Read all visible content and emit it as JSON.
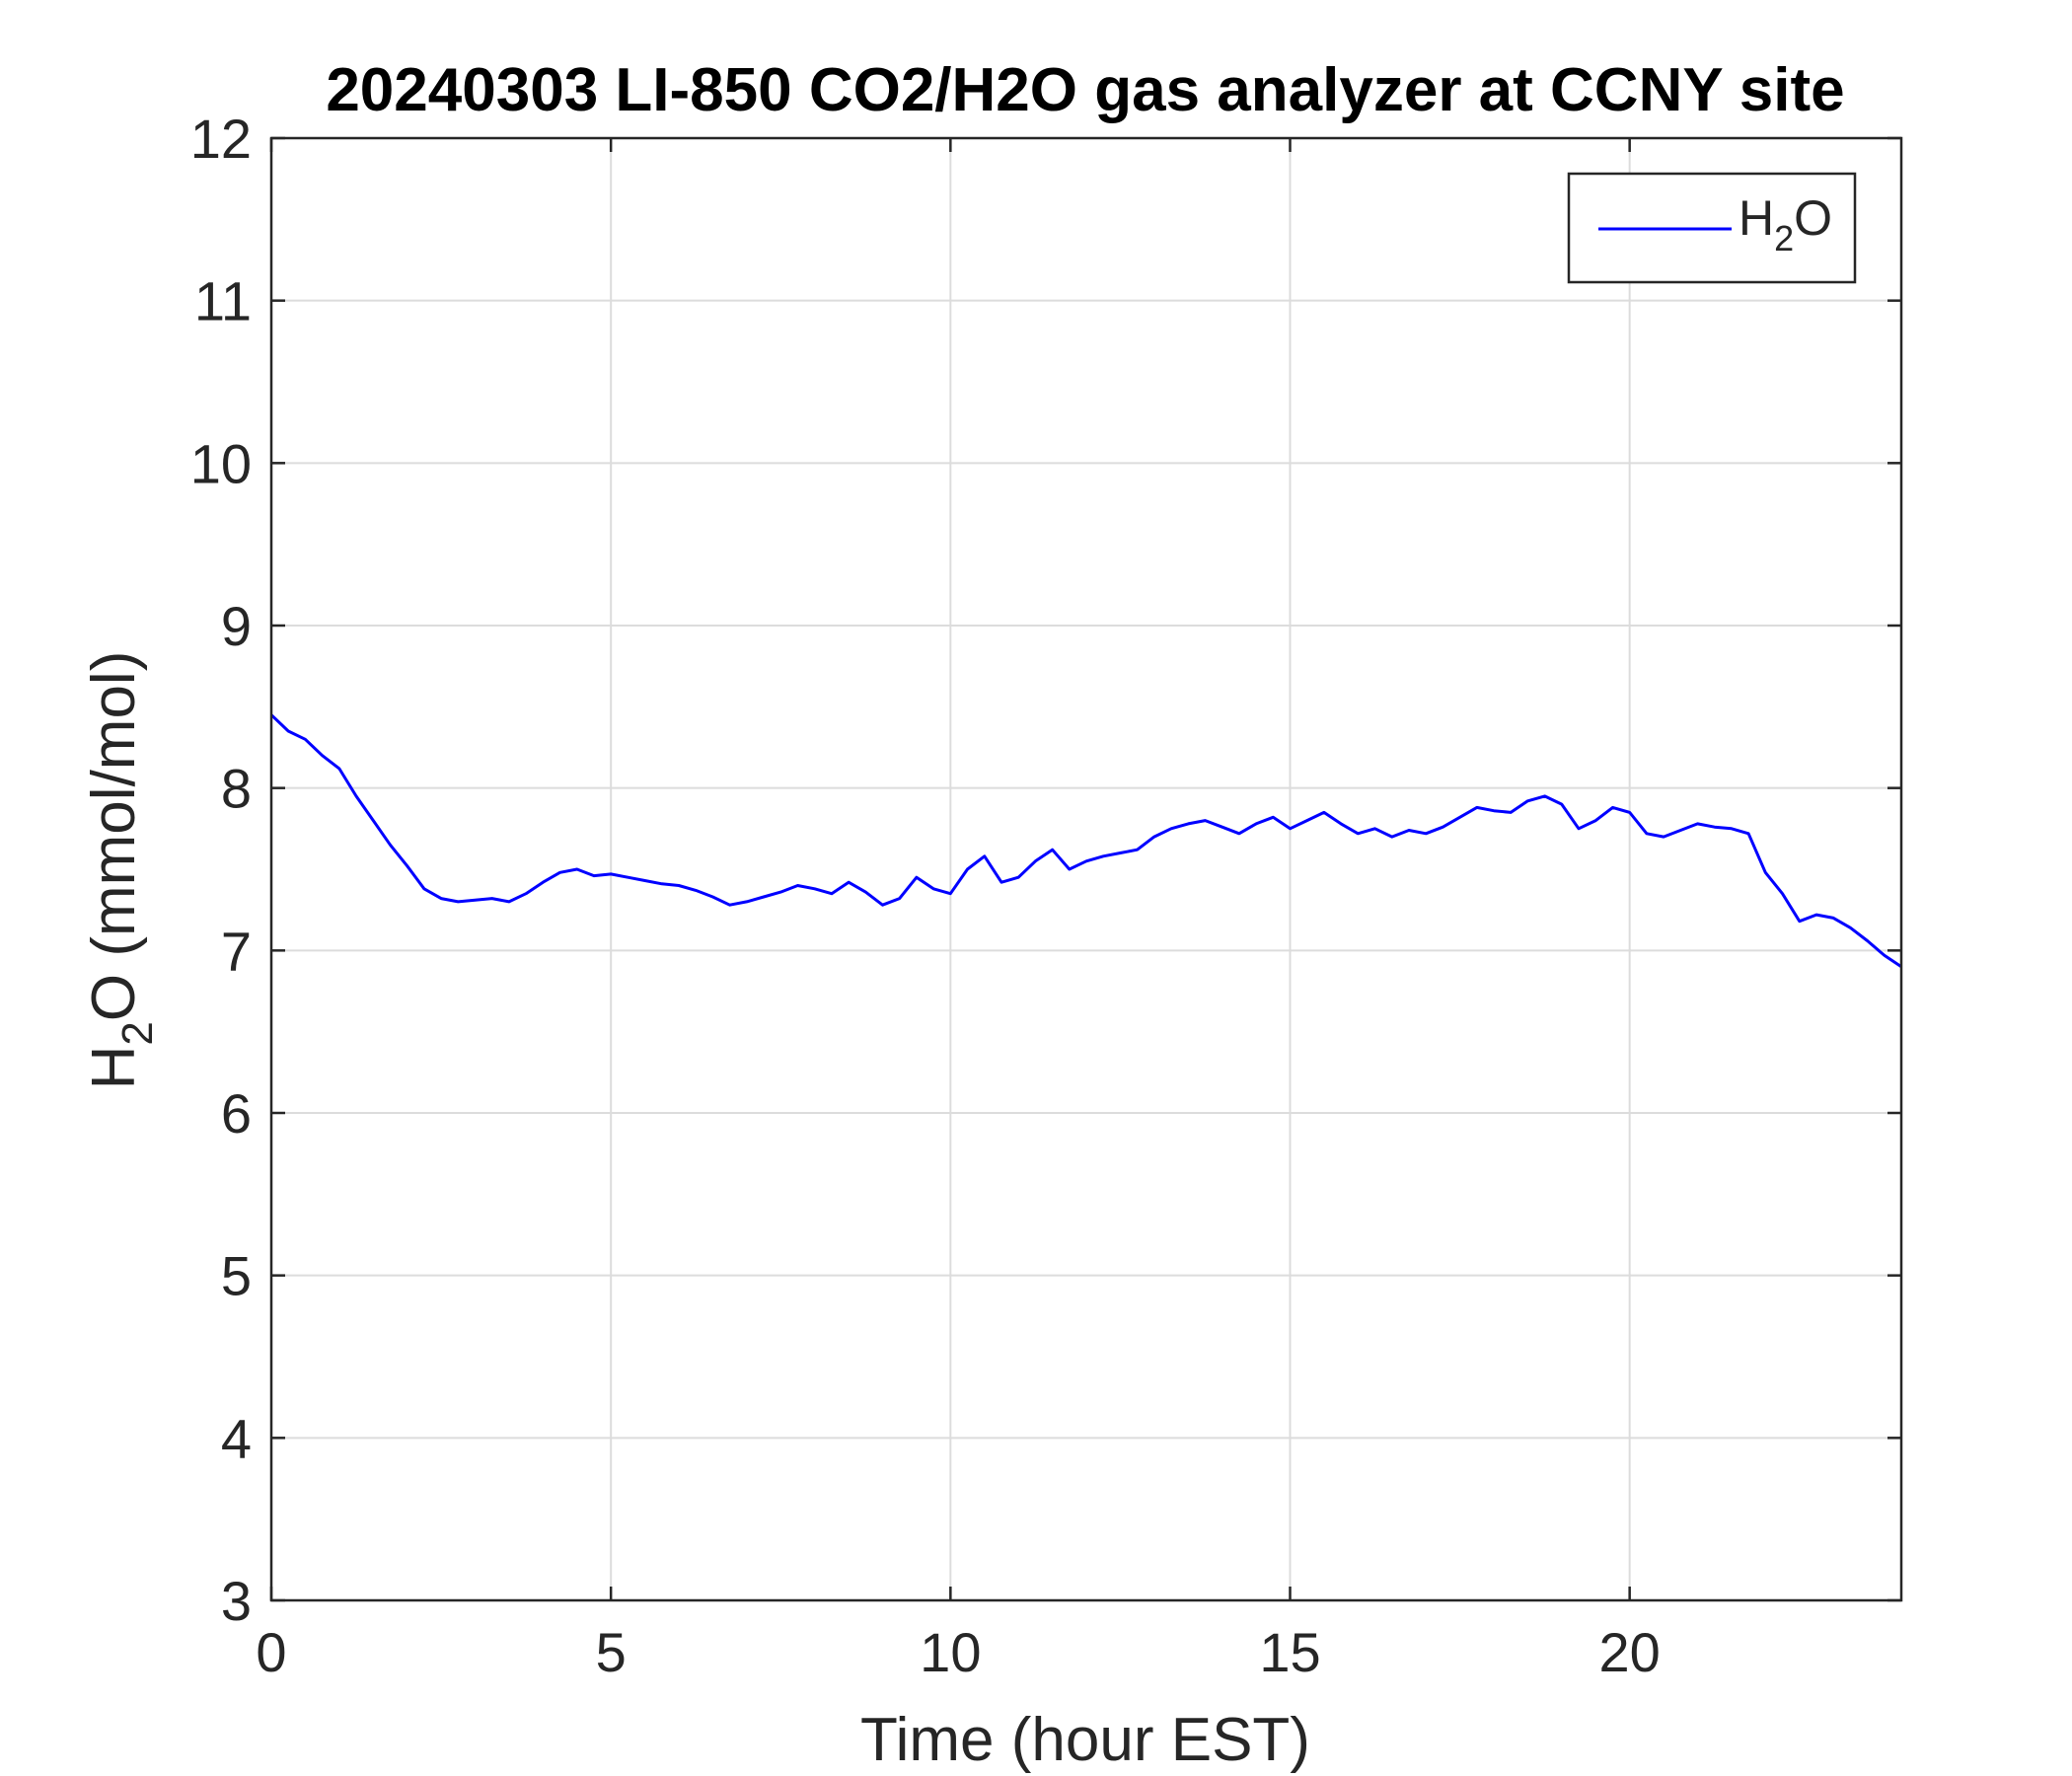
{
  "chart_data": {
    "type": "line",
    "title": "20240303 LI-850 CO2/H2O gas analyzer at CCNY site",
    "xlabel": "Time (hour EST)",
    "ylabel": {
      "prefix": "H",
      "subscript": "2",
      "suffix": "O (mmol/mol)"
    },
    "xlim": [
      0,
      24
    ],
    "ylim": [
      3,
      12
    ],
    "x_ticks": [
      0,
      5,
      10,
      15,
      20
    ],
    "y_ticks": [
      3,
      4,
      5,
      6,
      7,
      8,
      9,
      10,
      11,
      12
    ],
    "grid": true,
    "legend": {
      "position": "top-right",
      "entries": [
        {
          "prefix": "H",
          "subscript": "2",
          "suffix": "O"
        }
      ]
    },
    "series": [
      {
        "color": "#0000ff",
        "x": [
          0.0,
          0.25,
          0.5,
          0.75,
          1.0,
          1.25,
          1.5,
          1.75,
          2.0,
          2.25,
          2.5,
          2.75,
          3.0,
          3.25,
          3.5,
          3.75,
          4.0,
          4.25,
          4.5,
          4.75,
          5.0,
          5.25,
          5.5,
          5.75,
          6.0,
          6.25,
          6.5,
          6.75,
          7.0,
          7.25,
          7.5,
          7.75,
          8.0,
          8.25,
          8.5,
          8.75,
          9.0,
          9.25,
          9.5,
          9.75,
          10.0,
          10.25,
          10.5,
          10.75,
          11.0,
          11.25,
          11.5,
          11.75,
          12.0,
          12.25,
          12.5,
          12.75,
          13.0,
          13.25,
          13.5,
          13.75,
          14.0,
          14.25,
          14.5,
          14.75,
          15.0,
          15.25,
          15.5,
          15.75,
          16.0,
          16.25,
          16.5,
          16.75,
          17.0,
          17.25,
          17.5,
          17.75,
          18.0,
          18.25,
          18.5,
          18.75,
          19.0,
          19.25,
          19.5,
          19.75,
          20.0,
          20.25,
          20.5,
          20.75,
          21.0,
          21.25,
          21.5,
          21.75,
          22.0,
          22.25,
          22.5,
          22.75,
          23.0,
          23.25,
          23.5,
          23.75,
          24.0
        ],
        "y": [
          8.45,
          8.35,
          8.3,
          8.2,
          8.12,
          7.95,
          7.8,
          7.65,
          7.52,
          7.38,
          7.32,
          7.3,
          7.31,
          7.32,
          7.3,
          7.35,
          7.42,
          7.48,
          7.5,
          7.46,
          7.47,
          7.45,
          7.43,
          7.41,
          7.4,
          7.37,
          7.33,
          7.28,
          7.3,
          7.33,
          7.36,
          7.4,
          7.38,
          7.35,
          7.42,
          7.36,
          7.28,
          7.32,
          7.45,
          7.38,
          7.35,
          7.5,
          7.58,
          7.42,
          7.45,
          7.55,
          7.62,
          7.5,
          7.55,
          7.58,
          7.6,
          7.62,
          7.7,
          7.75,
          7.78,
          7.8,
          7.76,
          7.72,
          7.78,
          7.82,
          7.75,
          7.8,
          7.85,
          7.78,
          7.72,
          7.75,
          7.7,
          7.74,
          7.72,
          7.76,
          7.82,
          7.88,
          7.86,
          7.85,
          7.92,
          7.95,
          7.9,
          7.75,
          7.8,
          7.88,
          7.85,
          7.72,
          7.7,
          7.74,
          7.78,
          7.76,
          7.75,
          7.72,
          7.48,
          7.35,
          7.18,
          7.22,
          7.2,
          7.14,
          7.06,
          6.97,
          6.9
        ]
      }
    ]
  }
}
